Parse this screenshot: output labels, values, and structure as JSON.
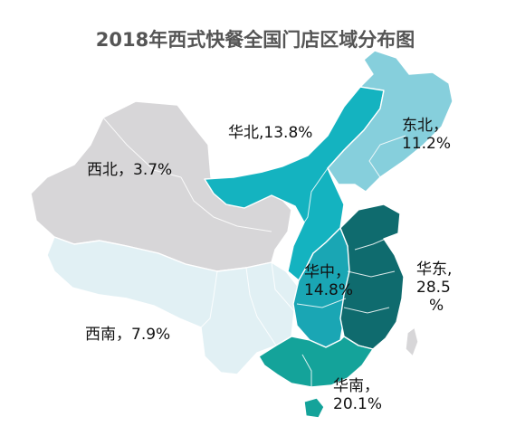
{
  "title": "2018年西式快餐全国门店区域分布图",
  "regions": [
    {
      "key": "northwest",
      "name": "西北",
      "separator": "，",
      "share": "3.7%",
      "value": 3.7,
      "color": "#d7d6d8"
    },
    {
      "key": "north",
      "name": "华北",
      "separator": ",",
      "share": "13.8%",
      "value": 13.8,
      "color": "#14b3c0"
    },
    {
      "key": "northeast",
      "name": "东北",
      "separator": "，",
      "share": "11.2%",
      "value": 11.2,
      "color": "#86cfdc"
    },
    {
      "key": "southwest",
      "name": "西南",
      "separator": "，",
      "share": "7.9%",
      "value": 7.9,
      "color": "#e1f0f4"
    },
    {
      "key": "central",
      "name": "华中",
      "separator": "，",
      "share": "14.8%",
      "value": 14.8,
      "color": "#1aa6b4"
    },
    {
      "key": "east",
      "name": "华东",
      "separator": ",",
      "share": "28.5",
      "unit": "%",
      "value": 28.5,
      "color": "#0f6b6e"
    },
    {
      "key": "south",
      "name": "华南",
      "separator": "，",
      "share": "20.1%",
      "value": 20.1,
      "color": "#14a39a"
    }
  ]
}
